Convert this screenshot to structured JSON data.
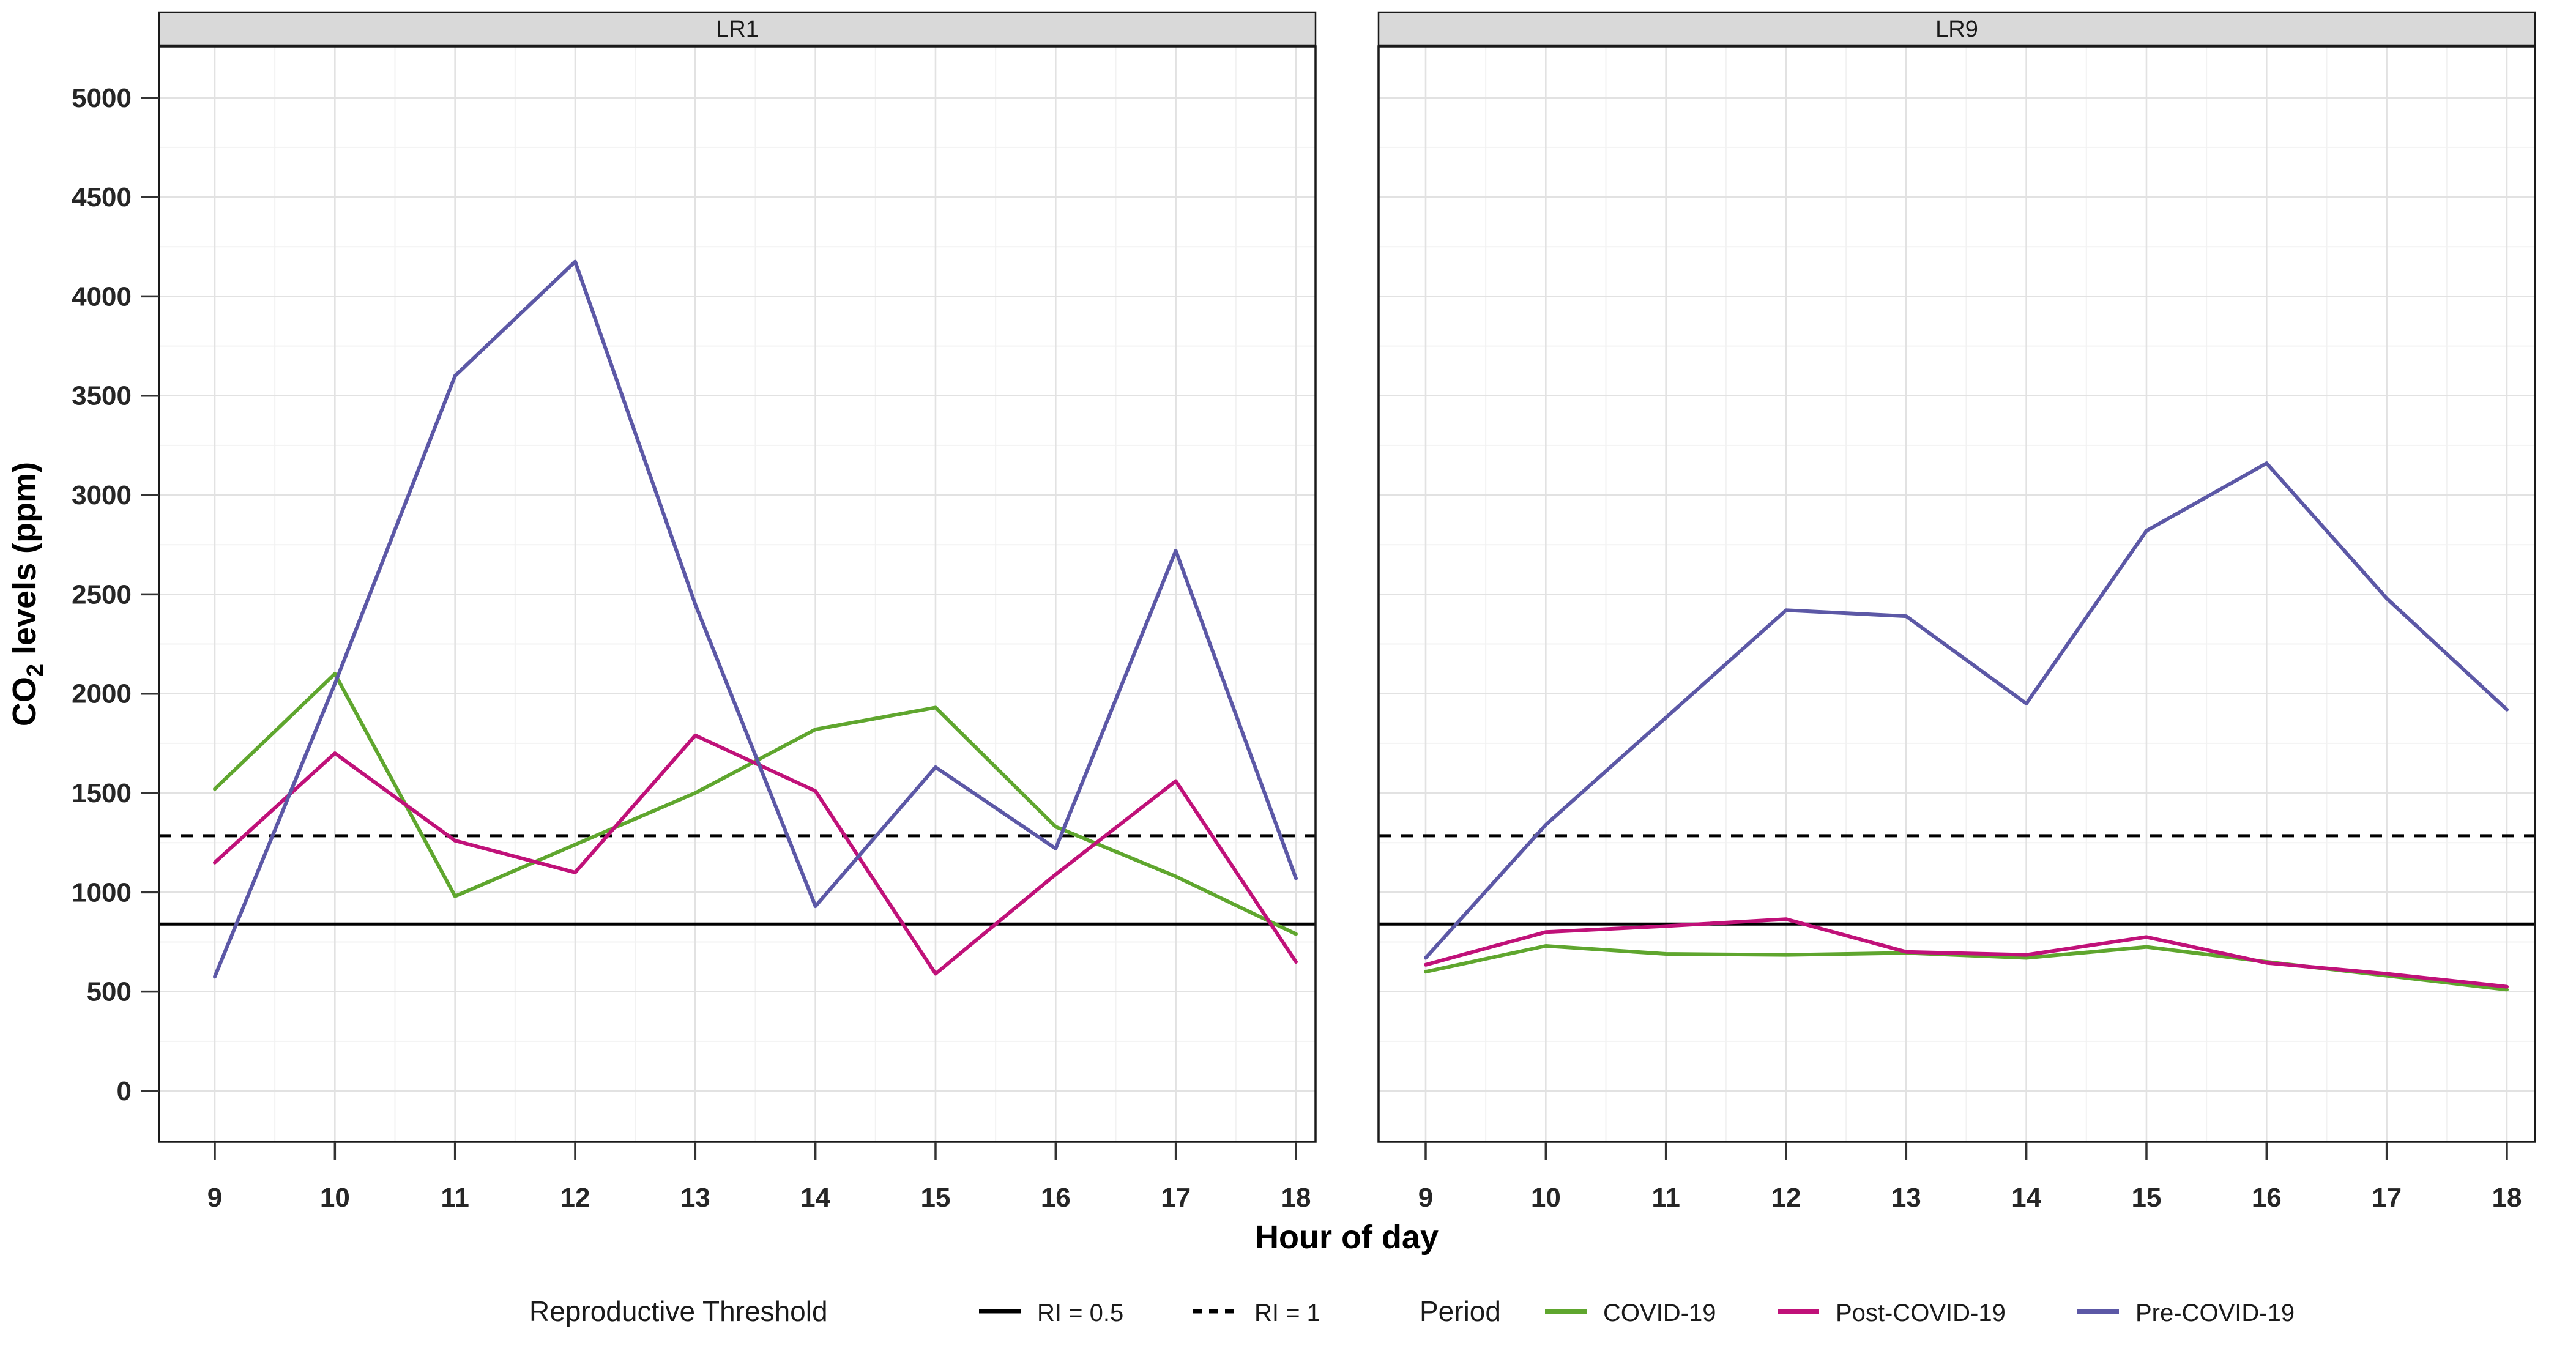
{
  "figure_title": "CO2 levels by hour of day, faceted by room, across COVID periods",
  "facets": [
    {
      "id": "LR1",
      "label": "LR1"
    },
    {
      "id": "LR9",
      "label": "LR9"
    }
  ],
  "x_axis": {
    "title": "Hour of day",
    "ticks": [
      9,
      10,
      11,
      12,
      13,
      14,
      15,
      16,
      17,
      18
    ]
  },
  "y_axis": {
    "title_prefix": "CO",
    "title_sub": "2",
    "title_suffix": " levels (ppm)",
    "ticks": [
      0,
      500,
      1000,
      1500,
      2000,
      2500,
      3000,
      3500,
      4000,
      4500,
      5000
    ]
  },
  "legend": {
    "threshold_group_label": "Reproductive Threshold",
    "threshold_items": [
      {
        "label": "RI = 0.5",
        "style": "solid"
      },
      {
        "label": "RI = 1",
        "style": "dashed"
      }
    ],
    "period_group_label": "Period",
    "period_items": [
      {
        "label": "COVID-19",
        "color": "#5FA62E"
      },
      {
        "label": "Post-COVID-19",
        "color": "#C01179"
      },
      {
        "label": "Pre-COVID-19",
        "color": "#5C58A6"
      }
    ]
  },
  "colors": {
    "covid": "#5FA62E",
    "post_covid": "#C01179",
    "pre_covid": "#5C58A6",
    "strip_fill": "#D9D9D9",
    "panel_border": "#1A1A1A",
    "grid_major": "#E2E2E2",
    "grid_minor": "#F2F2F2",
    "tick_label": "#262626",
    "threshold": "#000000"
  },
  "chart_data": [
    {
      "type": "line",
      "facet": "LR1",
      "x": [
        9,
        10,
        11,
        12,
        13,
        14,
        15,
        16,
        17,
        18
      ],
      "series": [
        {
          "name": "COVID-19",
          "values": [
            1520,
            2100,
            980,
            1240,
            1500,
            1820,
            1930,
            1330,
            1080,
            790
          ]
        },
        {
          "name": "Post-COVID-19",
          "values": [
            1150,
            1700,
            1260,
            1100,
            1790,
            1510,
            590,
            1090,
            1560,
            650
          ]
        },
        {
          "name": "Pre-COVID-19",
          "values": [
            575,
            2050,
            3600,
            4175,
            2450,
            930,
            1630,
            1220,
            2720,
            1070
          ]
        }
      ],
      "thresholds": [
        {
          "label": "RI = 0.5",
          "value": 840,
          "style": "solid"
        },
        {
          "label": "RI = 1",
          "value": 1285,
          "style": "dashed"
        }
      ],
      "xlabel": "Hour of day",
      "ylabel": "CO2 levels (ppm)",
      "ylim": [
        0,
        5250
      ],
      "grid": true,
      "legend_position": "bottom"
    },
    {
      "type": "line",
      "facet": "LR9",
      "x": [
        9,
        10,
        11,
        12,
        13,
        14,
        15,
        16,
        17,
        18
      ],
      "series": [
        {
          "name": "COVID-19",
          "values": [
            600,
            730,
            690,
            685,
            695,
            670,
            725,
            650,
            580,
            510
          ]
        },
        {
          "name": "Post-COVID-19",
          "values": [
            635,
            800,
            830,
            865,
            700,
            685,
            775,
            645,
            590,
            525
          ]
        },
        {
          "name": "Pre-COVID-19",
          "values": [
            670,
            1340,
            1880,
            2420,
            2390,
            1950,
            2820,
            3160,
            2480,
            1920
          ]
        }
      ],
      "thresholds": [
        {
          "label": "RI = 0.5",
          "value": 840,
          "style": "solid"
        },
        {
          "label": "RI = 1",
          "value": 1285,
          "style": "dashed"
        }
      ],
      "xlabel": "Hour of day",
      "ylabel": "CO2 levels (ppm)",
      "ylim": [
        0,
        5250
      ],
      "grid": true,
      "legend_position": "bottom"
    }
  ]
}
